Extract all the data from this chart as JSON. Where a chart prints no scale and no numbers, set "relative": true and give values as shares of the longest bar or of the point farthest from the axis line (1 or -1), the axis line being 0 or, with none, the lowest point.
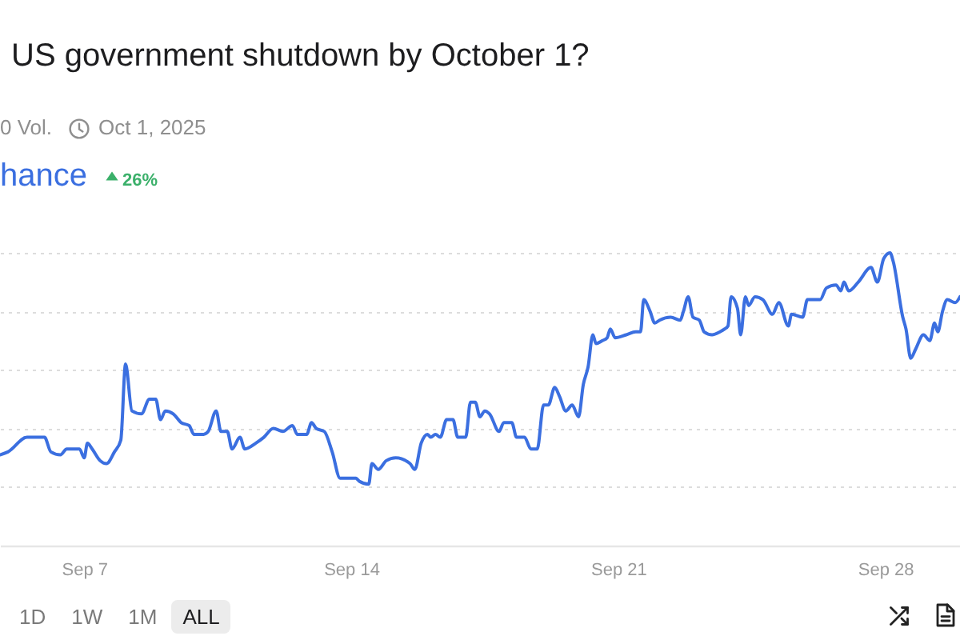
{
  "chart_data": {
    "type": "line",
    "title": "US government shutdown by October 1?",
    "annotations": [
      "0 Vol.",
      "Oct 1, 2025",
      "26%",
      "1D",
      "1W",
      "1M",
      "ALL"
    ],
    "relative": true,
    "grid": "y",
    "xlim": [
      "--09-04T19:00",
      "--09-29T23:00"
    ],
    "xticks": [
      {
        "value": "--09-07",
        "label": "Sep 7"
      },
      {
        "value": "--09-14",
        "label": "Sep 14"
      },
      {
        "value": "--09-21",
        "label": "Sep 21"
      },
      {
        "value": "--09-28",
        "label": "Sep 28"
      }
    ],
    "x": [
      "--09-04T19:00",
      "--09-05T00:00",
      "--09-05T12:00",
      "--09-05T23:00",
      "--09-06T03:00",
      "--09-06T09:00",
      "--09-06T13:00",
      "--09-06T21:00",
      "--09-07T00:00",
      "--09-07T02:00",
      "--09-07T05:00",
      "--09-07T10:00",
      "--09-07T14:00",
      "--09-07T19:00",
      "--09-07T23:00",
      "--09-08T02:00",
      "--09-08T06:00",
      "--09-08T12:00",
      "--09-08T17:00",
      "--09-08T21:00",
      "--09-09T00:00",
      "--09-09T03:00",
      "--09-09T08:00",
      "--09-09T13:00",
      "--09-09T18:00",
      "--09-09T21:00",
      "--09-10T03:00",
      "--09-10T06:00",
      "--09-10T11:00",
      "--09-10T14:00",
      "--09-10T18:00",
      "--09-10T21:00",
      "--09-11T02:00",
      "--09-11T05:00",
      "--09-11T12:00",
      "--09-11T17:00",
      "--09-11T23:00",
      "--09-12T05:00",
      "--09-12T11:00",
      "--09-12T14:00",
      "--09-12T20:00",
      "--09-12T23:00",
      "--09-13T02:00",
      "--09-13T07:00",
      "--09-13T12:00",
      "--09-13T17:00",
      "--09-13T21:00",
      "--09-14T03:00",
      "--09-14T05:00",
      "--09-14T11:00",
      "--09-14T13:00",
      "--09-14T17:00",
      "--09-14T22:00",
      "--09-15T04:00",
      "--09-15T13:00",
      "--09-15T16:00",
      "--09-15T20:00",
      "--09-16T00:00",
      "--09-16T02:00",
      "--09-16T05:00",
      "--09-16T08:00",
      "--09-16T12:00",
      "--09-16T16:00",
      "--09-16T19:00",
      "--09-17T00:00",
      "--09-17T03:00",
      "--09-17T06:00",
      "--09-17T09:00",
      "--09-17T12:00",
      "--09-17T15:00",
      "--09-17T21:00",
      "--09-18T00:00",
      "--09-18T05:00",
      "--09-18T08:00",
      "--09-18T13:00",
      "--09-18T17:00",
      "--09-18T21:00",
      "--09-19T01:00",
      "--09-19T04:00",
      "--09-19T08:00",
      "--09-19T11:00",
      "--09-19T15:00",
      "--09-19T19:00",
      "--09-19T23:00",
      "--09-20T02:00",
      "--09-20T05:00",
      "--09-20T08:00",
      "--09-20T10:00",
      "--09-20T14:00",
      "--09-20T17:00",
      "--09-20T19:00",
      "--09-20T22:00",
      "--09-21T05:00",
      "--09-21T11:00",
      "--09-21T14:00",
      "--09-21T16:00",
      "--09-21T20:00",
      "--09-21T23:00",
      "--09-22T02:00",
      "--09-22T09:00",
      "--09-22T15:00",
      "--09-22T17:00",
      "--09-22T20:00",
      "--09-22T23:00",
      "--09-23T03:00",
      "--09-23T06:00",
      "--09-23T11:00",
      "--09-23T16:00",
      "--09-23T19:00",
      "--09-23T21:00",
      "--09-23T23:00",
      "--09-24T03:00",
      "--09-24T05:00",
      "--09-24T08:00",
      "--09-24T10:00",
      "--09-24T14:00",
      "--09-24T19:00",
      "--09-25T01:00",
      "--09-25T05:00",
      "--09-25T11:00",
      "--09-25T13:00",
      "--09-25T20:00",
      "--09-25T23:00",
      "--09-26T02:00",
      "--09-26T07:00",
      "--09-26T11:00",
      "--09-26T17:00",
      "--09-26T20:00",
      "--09-26T22:00",
      "--09-27T01:00",
      "--09-27T07:00",
      "--09-27T15:00",
      "--09-27T19:00",
      "--09-27T23:00",
      "--09-28T03:00",
      "--09-28T05:00",
      "--09-28T11:00",
      "--09-28T13:00",
      "--09-28T16:00",
      "--09-28T19:00",
      "--09-29T00:00",
      "--09-29T04:00",
      "--09-29T07:00",
      "--09-29T09:00",
      "--09-29T12:00",
      "--09-29T15:00",
      "--09-29T20:00",
      "--09-29T23:00"
    ],
    "series": [
      {
        "name": "hance",
        "color": "#3b6fe0",
        "values": [
          0.31,
          0.32,
          0.37,
          0.37,
          0.32,
          0.31,
          0.33,
          0.33,
          0.3,
          0.35,
          0.33,
          0.29,
          0.28,
          0.32,
          0.36,
          0.62,
          0.46,
          0.45,
          0.5,
          0.5,
          0.43,
          0.46,
          0.45,
          0.42,
          0.41,
          0.38,
          0.38,
          0.39,
          0.46,
          0.39,
          0.39,
          0.33,
          0.37,
          0.33,
          0.35,
          0.37,
          0.4,
          0.39,
          0.41,
          0.38,
          0.38,
          0.42,
          0.4,
          0.39,
          0.32,
          0.23,
          0.23,
          0.23,
          0.22,
          0.21,
          0.28,
          0.26,
          0.29,
          0.3,
          0.28,
          0.26,
          0.35,
          0.38,
          0.37,
          0.38,
          0.37,
          0.43,
          0.43,
          0.37,
          0.37,
          0.49,
          0.49,
          0.44,
          0.46,
          0.45,
          0.39,
          0.42,
          0.42,
          0.37,
          0.37,
          0.33,
          0.33,
          0.48,
          0.48,
          0.54,
          0.51,
          0.46,
          0.48,
          0.44,
          0.55,
          0.61,
          0.72,
          0.69,
          0.7,
          0.71,
          0.74,
          0.71,
          0.72,
          0.73,
          0.73,
          0.84,
          0.8,
          0.76,
          0.77,
          0.78,
          0.77,
          0.8,
          0.85,
          0.78,
          0.77,
          0.73,
          0.72,
          0.73,
          0.74,
          0.75,
          0.85,
          0.81,
          0.72,
          0.85,
          0.82,
          0.85,
          0.84,
          0.79,
          0.83,
          0.75,
          0.79,
          0.78,
          0.84,
          0.84,
          0.84,
          0.88,
          0.89,
          0.87,
          0.9,
          0.87,
          0.9,
          0.95,
          0.9,
          0.98,
          1,
          0.97,
          0.78,
          0.74,
          0.64,
          0.67,
          0.72,
          0.7,
          0.76,
          0.73,
          0.8,
          0.84,
          0.83,
          0.85
        ]
      }
    ]
  }
}
